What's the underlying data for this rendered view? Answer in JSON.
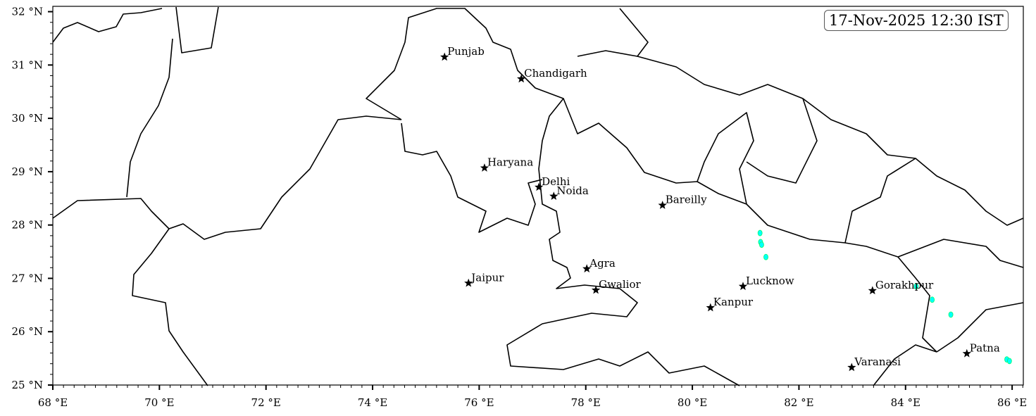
{
  "timestamp": "17-Nov-2025 12:30 IST",
  "map": {
    "lon_range": [
      68,
      86.21
    ],
    "lat_range": [
      25,
      32.1
    ],
    "lon_ticks": [
      68,
      70,
      72,
      74,
      76,
      78,
      80,
      82,
      84,
      86
    ],
    "lat_ticks": [
      25,
      26,
      27,
      28,
      29,
      30,
      31,
      32
    ],
    "lon_tick_labels": [
      "68 °E",
      "70 °E",
      "72 °E",
      "74 °E",
      "76 °E",
      "78 °E",
      "80 °E",
      "82 °E",
      "84 °E",
      "86 °E"
    ],
    "lat_tick_labels": [
      "25 °N",
      "26 °N",
      "27 °N",
      "28 °N",
      "29 °N",
      "30 °N",
      "31 °N",
      "32 °N"
    ],
    "minor_tick_step_deg": 0.2,
    "boundary_color": "#000000",
    "precip_colors": [
      "#00ffff",
      "#00ff66"
    ]
  },
  "cities": [
    {
      "name": "Punjab",
      "lon": 75.35,
      "lat": 31.15
    },
    {
      "name": "Chandigarh",
      "lon": 76.79,
      "lat": 30.74
    },
    {
      "name": "Haryana",
      "lon": 76.1,
      "lat": 29.07
    },
    {
      "name": "Delhi",
      "lon": 77.12,
      "lat": 28.71
    },
    {
      "name": "Noida",
      "lon": 77.4,
      "lat": 28.54
    },
    {
      "name": "Bareilly",
      "lon": 79.44,
      "lat": 28.37
    },
    {
      "name": "Agra",
      "lon": 78.02,
      "lat": 27.18
    },
    {
      "name": "Jaipur",
      "lon": 75.8,
      "lat": 26.91
    },
    {
      "name": "Gwalior",
      "lon": 78.19,
      "lat": 26.78
    },
    {
      "name": "Lucknow",
      "lon": 80.95,
      "lat": 26.85
    },
    {
      "name": "Kanpur",
      "lon": 80.34,
      "lat": 26.45
    },
    {
      "name": "Gorakhpur",
      "lon": 83.38,
      "lat": 26.77
    },
    {
      "name": "Varanasi",
      "lon": 82.99,
      "lat": 25.33
    },
    {
      "name": "Patna",
      "lon": 85.15,
      "lat": 25.59
    }
  ],
  "precip_cells": [
    {
      "lon": 81.27,
      "lat": 27.85
    },
    {
      "lon": 81.28,
      "lat": 27.68
    },
    {
      "lon": 81.3,
      "lat": 27.63
    },
    {
      "lon": 81.38,
      "lat": 27.4
    },
    {
      "lon": 84.2,
      "lat": 26.85
    },
    {
      "lon": 84.5,
      "lat": 26.6
    },
    {
      "lon": 84.85,
      "lat": 26.32
    },
    {
      "lon": 85.9,
      "lat": 25.48
    },
    {
      "lon": 85.95,
      "lat": 25.45
    }
  ]
}
